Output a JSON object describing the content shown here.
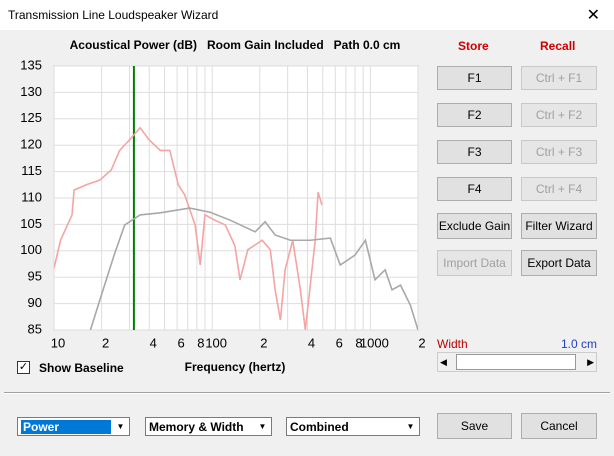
{
  "window": {
    "title": "Transmission Line Loudspeaker Wizard"
  },
  "chart_data": {
    "type": "line",
    "title": "Acoustical Power (dB)   Room Gain Included   Path 0.0 cm",
    "x_label": "Frequency (hertz)",
    "log_x": true,
    "grid": true,
    "xlim": [
      10,
      2000
    ],
    "ylim": [
      85,
      135
    ],
    "yticks": [
      85,
      90,
      95,
      100,
      105,
      110,
      115,
      120,
      125,
      130,
      135
    ],
    "xticks": [
      10,
      {
        "value": 20,
        "label": "2"
      },
      {
        "value": 40,
        "label": "4"
      },
      {
        "value": 60,
        "label": "6"
      },
      {
        "value": 80,
        "label": "8"
      },
      100,
      {
        "value": 200,
        "label": "2"
      },
      {
        "value": 400,
        "label": "4"
      },
      {
        "value": 600,
        "label": "6"
      },
      {
        "value": 800,
        "label": "8"
      },
      1000,
      {
        "value": 2000,
        "label": "2"
      }
    ],
    "minor_xticks": [
      30,
      50,
      70,
      90,
      300,
      500,
      700,
      900
    ],
    "marker_x": 32,
    "marker_color": "#008000",
    "series": [
      {
        "color": "#f4a4a4",
        "x": [
          10,
          11,
          13,
          13.4,
          16,
          19.5,
          23,
          26,
          30,
          35,
          40,
          47,
          54,
          61,
          67,
          78,
          84,
          90,
          104,
          121,
          139,
          150,
          168,
          207,
          233,
          250,
          270,
          289,
          323,
          361,
          388,
          448,
          467,
          494
        ],
        "values": [
          96.7,
          102,
          106.8,
          111.5,
          112.5,
          113.4,
          115.3,
          119,
          121,
          123.3,
          121,
          119,
          119,
          112.5,
          110.6,
          104.9,
          97.3,
          106.8,
          105.8,
          104.9,
          101,
          94.5,
          100.2,
          102,
          100.2,
          92.6,
          86.9,
          96.4,
          102,
          92.6,
          85,
          102,
          111.1,
          108.7
        ]
      },
      {
        "color": "#a8a8a8",
        "x": [
          17,
          19.5,
          24,
          28,
          35,
          47,
          72,
          97,
          130,
          187,
          216,
          250,
          312,
          417,
          558,
          645,
          800,
          930,
          1070,
          1240,
          1370,
          1550,
          1790,
          2000
        ],
        "values": [
          85,
          90.7,
          99.2,
          104.9,
          106.8,
          107.2,
          108.1,
          107.3,
          105.8,
          103.6,
          105.5,
          103,
          102,
          102,
          102.4,
          97.3,
          99.2,
          102,
          94.5,
          96.4,
          92.6,
          93.5,
          89.7,
          85
        ]
      }
    ]
  },
  "controls": {
    "store_label": "Store",
    "recall_label": "Recall",
    "store_buttons": [
      "F1",
      "F2",
      "F3",
      "F4"
    ],
    "recall_buttons": [
      "Ctrl + F1",
      "Ctrl + F2",
      "Ctrl + F3",
      "Ctrl + F4"
    ],
    "exclude_gain": "Exclude Gain",
    "filter_wizard": "Filter Wizard",
    "import_data": "Import Data",
    "export_data": "Export Data",
    "width_label": "Width",
    "width_value": "1.0 cm",
    "show_baseline": "Show Baseline",
    "dropdowns": [
      "Power",
      "Memory & Width",
      "Combined"
    ],
    "save": "Save",
    "cancel": "Cancel"
  }
}
